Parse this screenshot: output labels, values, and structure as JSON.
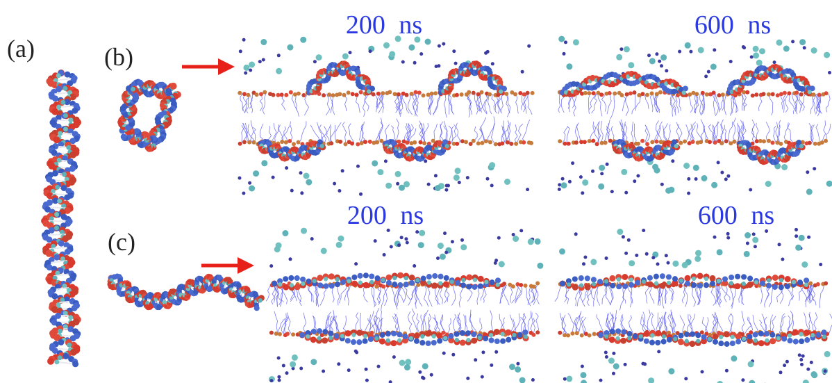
{
  "panels": [
    {
      "label": "(a)"
    },
    {
      "label": "(b)",
      "snapshots": [
        {
          "time": "200 ns"
        },
        {
          "time": "600 ns"
        }
      ]
    },
    {
      "label": "(c)",
      "snapshots": [
        {
          "time": "200 ns"
        },
        {
          "time": "600 ns"
        }
      ]
    }
  ]
}
